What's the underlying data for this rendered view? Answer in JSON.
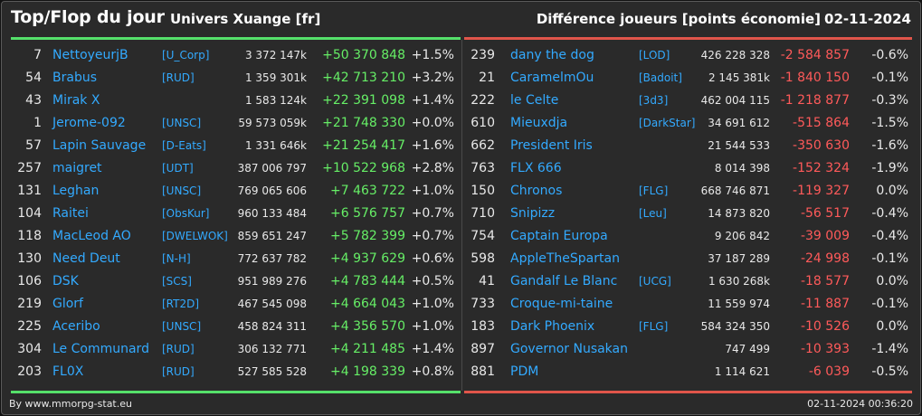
{
  "header": {
    "title": "Top/Flop du jour",
    "subtitle": "Univers Xuange [fr]",
    "right_title": "Différence joueurs [points économie]",
    "date": "02-11-2024"
  },
  "colors": {
    "accent_top": "#55e06a",
    "accent_flop": "#e0554a",
    "link": "#33aaff"
  },
  "top": [
    {
      "rank": "7",
      "name": "NettoyeurjB",
      "alliance": "[U_Corp]",
      "points": "3 372 147k",
      "diff": "+50 370 848",
      "pct": "+1.5%"
    },
    {
      "rank": "54",
      "name": "Brabus",
      "alliance": "[RUD]",
      "points": "1 359 301k",
      "diff": "+42 713 210",
      "pct": "+3.2%"
    },
    {
      "rank": "43",
      "name": "Mirak X",
      "alliance": "",
      "points": "1 583 124k",
      "diff": "+22 391 098",
      "pct": "+1.4%"
    },
    {
      "rank": "1",
      "name": "Jerome-092",
      "alliance": "[UNSC]",
      "points": "59 573 059k",
      "diff": "+21 748 330",
      "pct": "+0.0%"
    },
    {
      "rank": "57",
      "name": "Lapin Sauvage",
      "alliance": "[D-Eats]",
      "points": "1 331 646k",
      "diff": "+21 254 417",
      "pct": "+1.6%"
    },
    {
      "rank": "257",
      "name": "maigret",
      "alliance": "[UDT]",
      "points": "387 006 797",
      "diff": "+10 522 968",
      "pct": "+2.8%"
    },
    {
      "rank": "131",
      "name": "Leghan",
      "alliance": "[UNSC]",
      "points": "769 065 606",
      "diff": "+7 463 722",
      "pct": "+1.0%"
    },
    {
      "rank": "104",
      "name": "Raitei",
      "alliance": "[ObsKur]",
      "points": "960 133 484",
      "diff": "+6 576 757",
      "pct": "+0.7%"
    },
    {
      "rank": "118",
      "name": "MacLeod AO",
      "alliance": "[DWELWOK]",
      "points": "859 651 247",
      "diff": "+5 782 399",
      "pct": "+0.7%"
    },
    {
      "rank": "130",
      "name": "Need Deut",
      "alliance": "[N-H]",
      "points": "772 637 782",
      "diff": "+4 937 629",
      "pct": "+0.6%"
    },
    {
      "rank": "106",
      "name": "DSK",
      "alliance": "[SCS]",
      "points": "951 989 276",
      "diff": "+4 783 444",
      "pct": "+0.5%"
    },
    {
      "rank": "219",
      "name": "Glorf",
      "alliance": "[RT2D]",
      "points": "467 545 098",
      "diff": "+4 664 043",
      "pct": "+1.0%"
    },
    {
      "rank": "225",
      "name": "Aceribo",
      "alliance": "[UNSC]",
      "points": "458 824 311",
      "diff": "+4 356 570",
      "pct": "+1.0%"
    },
    {
      "rank": "304",
      "name": "Le Communard",
      "alliance": "[RUD]",
      "points": "306 132 771",
      "diff": "+4 211 485",
      "pct": "+1.4%"
    },
    {
      "rank": "203",
      "name": "FL0X",
      "alliance": "[RUD]",
      "points": "527 585 528",
      "diff": "+4 198 339",
      "pct": "+0.8%"
    }
  ],
  "flop": [
    {
      "rank": "239",
      "name": "dany the dog",
      "alliance": "[LOD]",
      "points": "426 228 328",
      "diff": "-2 584 857",
      "pct": "-0.6%"
    },
    {
      "rank": "21",
      "name": "CaramelmOu",
      "alliance": "[Badoit]",
      "points": "2 145 381k",
      "diff": "-1 840 150",
      "pct": "-0.1%"
    },
    {
      "rank": "222",
      "name": "le Celte",
      "alliance": "[3d3]",
      "points": "462 004 115",
      "diff": "-1 218 877",
      "pct": "-0.3%"
    },
    {
      "rank": "610",
      "name": "Mieuxdja",
      "alliance": "[DarkStar]",
      "points": "34 691 612",
      "diff": "-515 864",
      "pct": "-1.5%"
    },
    {
      "rank": "662",
      "name": "President Iris",
      "alliance": "",
      "points": "21 544 533",
      "diff": "-350 630",
      "pct": "-1.6%"
    },
    {
      "rank": "763",
      "name": "FLX 666",
      "alliance": "",
      "points": "8 014 398",
      "diff": "-152 324",
      "pct": "-1.9%"
    },
    {
      "rank": "150",
      "name": "Chronos",
      "alliance": "[FLG]",
      "points": "668 746 871",
      "diff": "-119 327",
      "pct": "0.0%"
    },
    {
      "rank": "710",
      "name": "Snipizz",
      "alliance": "[Leu]",
      "points": "14 873 820",
      "diff": "-56 517",
      "pct": "-0.4%"
    },
    {
      "rank": "754",
      "name": "Captain Europa",
      "alliance": "",
      "points": "9 206 842",
      "diff": "-39 009",
      "pct": "-0.4%"
    },
    {
      "rank": "598",
      "name": "AppleTheSpartan",
      "alliance": "",
      "points": "37 187 289",
      "diff": "-24 998",
      "pct": "-0.1%"
    },
    {
      "rank": "41",
      "name": "Gandalf Le Blanc",
      "alliance": "[UCG]",
      "points": "1 630 268k",
      "diff": "-18 577",
      "pct": "0.0%"
    },
    {
      "rank": "733",
      "name": "Croque-mi-taine",
      "alliance": "",
      "points": "11 559 974",
      "diff": "-11 887",
      "pct": "-0.1%"
    },
    {
      "rank": "183",
      "name": "Dark Phoenix",
      "alliance": "[FLG]",
      "points": "584 324 350",
      "diff": "-10 526",
      "pct": "0.0%"
    },
    {
      "rank": "897",
      "name": "Governor Nusakan",
      "alliance": "",
      "points": "747 499",
      "diff": "-10 393",
      "pct": "-1.4%"
    },
    {
      "rank": "881",
      "name": "PDM",
      "alliance": "",
      "points": "1 114 621",
      "diff": "-6 039",
      "pct": "-0.5%"
    }
  ],
  "footer": {
    "credit": "By www.mmorpg-stat.eu",
    "timestamp": "02-11-2024 00:36:20"
  }
}
